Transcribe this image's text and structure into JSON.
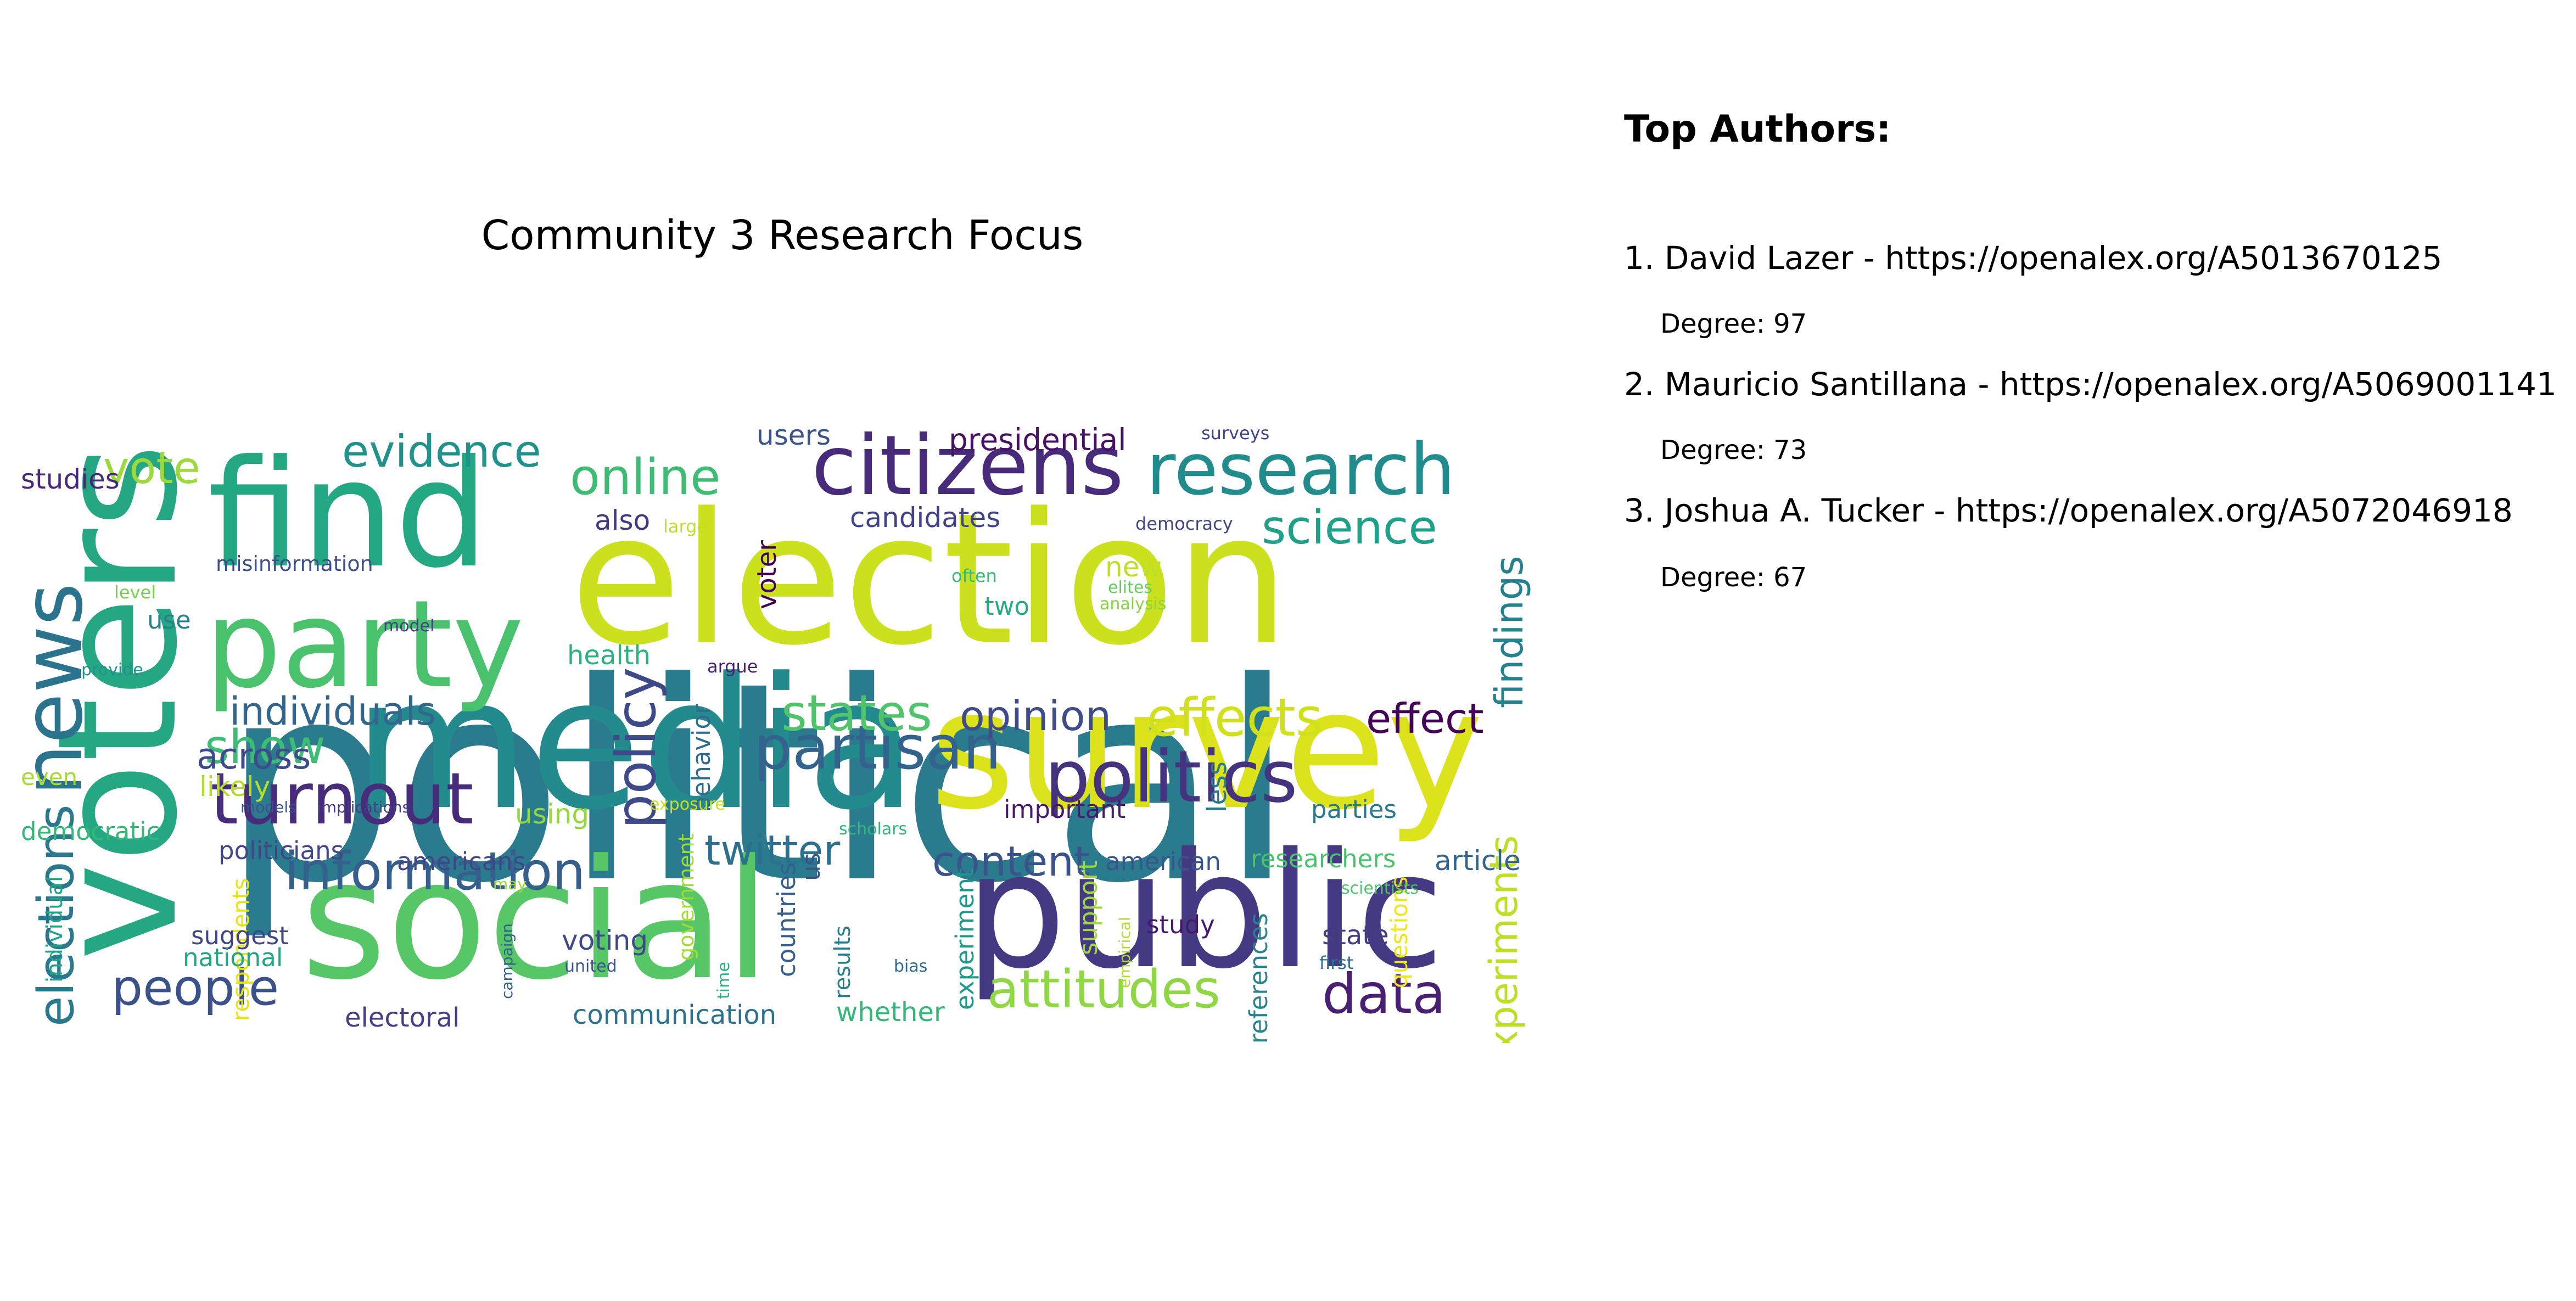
{
  "wordcloud": {
    "title": "Community 3 Research Focus",
    "words": [
      {
        "text": "political",
        "color": "#2a7b8e"
      },
      {
        "text": "election",
        "color": "#cbe11e"
      },
      {
        "text": "media",
        "color": "#238a8d"
      },
      {
        "text": "survey",
        "color": "#dce21b"
      },
      {
        "text": "voters",
        "color": "#25a784"
      },
      {
        "text": "social",
        "color": "#56c667"
      },
      {
        "text": "public",
        "color": "#443983"
      },
      {
        "text": "find",
        "color": "#24a884"
      },
      {
        "text": "party",
        "color": "#4ac16d"
      },
      {
        "text": "citizens",
        "color": "#472b7a"
      },
      {
        "text": "research",
        "color": "#228c8d"
      },
      {
        "text": "politics",
        "color": "#46337f"
      },
      {
        "text": "news",
        "color": "#2c738e"
      },
      {
        "text": "turnout",
        "color": "#462c7b"
      },
      {
        "text": "partisan",
        "color": "#33638d"
      },
      {
        "text": "information",
        "color": "#35608d"
      },
      {
        "text": "attitudes",
        "color": "#8fd744"
      },
      {
        "text": "elections",
        "color": "#2a788e"
      },
      {
        "text": "people",
        "color": "#3b518b"
      },
      {
        "text": "data",
        "color": "#481f71"
      },
      {
        "text": "effects",
        "color": "#d0e11c"
      },
      {
        "text": "policy",
        "color": "#3e4989"
      },
      {
        "text": "states",
        "color": "#4fc46a"
      },
      {
        "text": "online",
        "color": "#3fbc73"
      },
      {
        "text": "science",
        "color": "#1fa088"
      },
      {
        "text": "evidence",
        "color": "#21918c"
      },
      {
        "text": "vote",
        "color": "#9bd93c"
      },
      {
        "text": "show",
        "color": "#3dbc74"
      },
      {
        "text": "effect",
        "color": "#440256"
      },
      {
        "text": "opinion",
        "color": "#3e4c8a"
      },
      {
        "text": "findings",
        "color": "#26818e"
      },
      {
        "text": "experiments",
        "color": "#bddf26"
      },
      {
        "text": "twitter",
        "color": "#2d708e"
      },
      {
        "text": "content",
        "color": "#3a538b"
      },
      {
        "text": "individuals",
        "color": "#31668e"
      },
      {
        "text": "across",
        "color": "#3e4a89"
      },
      {
        "text": "presidential",
        "color": "#471063"
      },
      {
        "text": "candidates",
        "color": "#414287"
      },
      {
        "text": "users",
        "color": "#3b528b"
      },
      {
        "text": "studies",
        "color": "#482979"
      },
      {
        "text": "misinformation",
        "color": "#3c4f8a"
      },
      {
        "text": "also",
        "color": "#453781"
      },
      {
        "text": "large",
        "color": "#c2df23"
      },
      {
        "text": "voter",
        "color": "#440154"
      },
      {
        "text": "democracy",
        "color": "#404588"
      },
      {
        "text": "surveys",
        "color": "#414487"
      },
      {
        "text": "new",
        "color": "#bddf26"
      },
      {
        "text": "often",
        "color": "#3aba76"
      },
      {
        "text": "elites",
        "color": "#63cb5f"
      },
      {
        "text": "analysis",
        "color": "#89d548"
      },
      {
        "text": "two",
        "color": "#25ac82"
      },
      {
        "text": "level",
        "color": "#7ad151"
      },
      {
        "text": "use",
        "color": "#26818e"
      },
      {
        "text": "model",
        "color": "#424086"
      },
      {
        "text": "health",
        "color": "#2db27d"
      },
      {
        "text": "argue",
        "color": "#482173"
      },
      {
        "text": "behavior",
        "color": "#2f6c8e"
      },
      {
        "text": "provide",
        "color": "#20928c"
      },
      {
        "text": "likely",
        "color": "#b5de2b"
      },
      {
        "text": "even",
        "color": "#a8db34"
      },
      {
        "text": "models",
        "color": "#3b518b"
      },
      {
        "text": "implications",
        "color": "#433e85"
      },
      {
        "text": "exposure",
        "color": "#c8e020"
      },
      {
        "text": "using",
        "color": "#93d741"
      },
      {
        "text": "important",
        "color": "#481b6d"
      },
      {
        "text": "less",
        "color": "#297b8e"
      },
      {
        "text": "parties",
        "color": "#2a788e"
      },
      {
        "text": "democratic",
        "color": "#35b779"
      },
      {
        "text": "scholars",
        "color": "#32b67a"
      },
      {
        "text": "politicians",
        "color": "#404688"
      },
      {
        "text": "americans",
        "color": "#3f4788"
      },
      {
        "text": "american",
        "color": "#39568c"
      },
      {
        "text": "researchers",
        "color": "#4ac16d"
      },
      {
        "text": "individual",
        "color": "#20a386"
      },
      {
        "text": "respondents",
        "color": "#e5e419"
      },
      {
        "text": "government",
        "color": "#a2da37"
      },
      {
        "text": "may",
        "color": "#9fda3a"
      },
      {
        "text": "campaign",
        "color": "#34618d"
      },
      {
        "text": "countries",
        "color": "#355f8d"
      },
      {
        "text": "us",
        "color": "#3b528b"
      },
      {
        "text": "results",
        "color": "#277f8e"
      },
      {
        "text": "experiment",
        "color": "#1f988b"
      },
      {
        "text": "support",
        "color": "#a0da39"
      },
      {
        "text": "empirical",
        "color": "#b2dd2d"
      },
      {
        "text": "bias",
        "color": "#30698e"
      },
      {
        "text": "study",
        "color": "#481769"
      },
      {
        "text": "preferences",
        "color": "#25848e"
      },
      {
        "text": "questions",
        "color": "#efe51c"
      },
      {
        "text": "scientists",
        "color": "#4ec36b"
      },
      {
        "text": "suggest",
        "color": "#404588"
      },
      {
        "text": "national",
        "color": "#22a785"
      },
      {
        "text": "voting",
        "color": "#3e4989"
      },
      {
        "text": "united",
        "color": "#3a548c"
      },
      {
        "text": "time",
        "color": "#29af7f"
      },
      {
        "text": "state",
        "color": "#433d84"
      },
      {
        "text": "first",
        "color": "#2c728e"
      },
      {
        "text": "article",
        "color": "#32648e"
      },
      {
        "text": "electoral",
        "color": "#433e85"
      },
      {
        "text": "communication",
        "color": "#2c718e"
      },
      {
        "text": "whether",
        "color": "#35b779"
      }
    ]
  },
  "authors": {
    "heading": "Top Authors:",
    "items": [
      {
        "line": "1. David Lazer - https://openalex.org/A5013670125",
        "degree": "Degree: 97"
      },
      {
        "line": "2. Mauricio Santillana - https://openalex.org/A5069001141",
        "degree": "Degree: 73"
      },
      {
        "line": "3. Joshua A. Tucker - https://openalex.org/A5072046918",
        "degree": "Degree: 67"
      }
    ]
  }
}
